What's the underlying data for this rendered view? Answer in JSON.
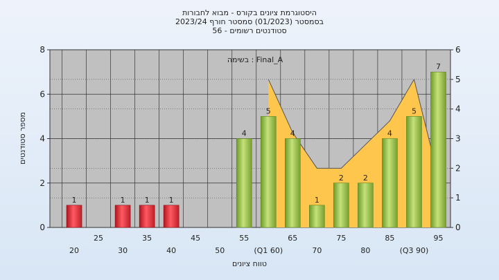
{
  "chart_data": {
    "type": "bar",
    "title_lines": [
      "היסטוגרמת ציונים בקורס - מבוא לחבורות",
      "בסמסטר  (01/2023)  סמסטר חורף  2023/24",
      "סטודנטים רשומים - 56"
    ],
    "annotation": "בשימה : Final_A",
    "xlabel": "טווח ציונים",
    "ylabel": "מספר סטודנטים",
    "x": [
      20,
      25,
      30,
      35,
      40,
      45,
      50,
      55,
      60,
      65,
      70,
      75,
      80,
      85,
      90,
      95
    ],
    "x_tick_labels": [
      "20",
      "25",
      "30",
      "35",
      "40",
      "45",
      "50",
      "55",
      "(Q1 60)",
      "65",
      "70",
      "75",
      "80",
      "85",
      "(Q3 90)",
      "95"
    ],
    "values": [
      1,
      0,
      1,
      1,
      1,
      0,
      0,
      4,
      5,
      4,
      1,
      2,
      2,
      4,
      5,
      7
    ],
    "data_labels": [
      "1",
      "",
      "1",
      "1",
      "1",
      "",
      "",
      "4",
      "5",
      "4",
      "1",
      "2",
      "2",
      "4",
      "5",
      "7"
    ],
    "pass_threshold": 55,
    "area_series": {
      "x": [
        60,
        65,
        70,
        75,
        80,
        85,
        90,
        95
      ],
      "values": [
        5,
        3.2,
        2,
        2,
        2.8,
        3.6,
        5,
        1.7
      ]
    },
    "ylim": [
      0,
      8
    ],
    "y_ticks": [
      0,
      2,
      4,
      6,
      8
    ],
    "y2lim": [
      0,
      6
    ],
    "y2_ticks": [
      0,
      1,
      2,
      3,
      4,
      5,
      6
    ],
    "grid": true,
    "colors": {
      "fail_bar": "#e02a35",
      "pass_bar": "#98c249",
      "area": "#ffc64d",
      "plot_bg": "#c0c0c0",
      "grid": "#333333"
    }
  }
}
